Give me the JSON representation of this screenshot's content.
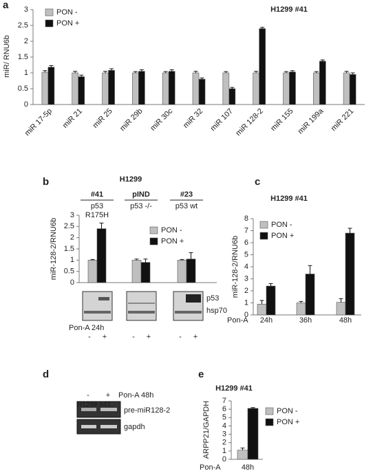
{
  "chart_data": [
    {
      "type": "bar",
      "panel": "a",
      "title": "H1299 #41",
      "y_label": "miR/ RNU6b",
      "categories": [
        "miR 17-5p",
        "miR 21",
        "miR 25",
        "miR 29b",
        "miR 30c",
        "miR 32",
        "miR 107",
        "miR 128-2",
        "miR 155",
        "miR 199a",
        "miR 221"
      ],
      "series": [
        {
          "name": "PON -",
          "color": "#bfbfbf",
          "values": [
            1.02,
            1.0,
            1.0,
            1.0,
            1.0,
            1.0,
            1.0,
            1.0,
            1.0,
            1.0,
            1.0
          ],
          "errors": [
            0.05,
            0.05,
            0.05,
            0.04,
            0.04,
            0.05,
            0.04,
            0.05,
            0.04,
            0.04,
            0.05
          ]
        },
        {
          "name": "PON +",
          "color": "#111111",
          "values": [
            1.18,
            0.88,
            1.08,
            1.05,
            1.05,
            0.8,
            0.5,
            2.4,
            1.03,
            1.37,
            0.95
          ],
          "errors": [
            0.05,
            0.05,
            0.05,
            0.05,
            0.05,
            0.04,
            0.04,
            0.04,
            0.04,
            0.04,
            0.05
          ]
        }
      ],
      "ylim": [
        0,
        3
      ],
      "yticks": [
        0,
        0.5,
        1,
        1.5,
        2,
        2.5,
        3
      ],
      "legend": "top-left"
    },
    {
      "type": "bar",
      "panel": "b",
      "title": "H1299",
      "y_label": "miR-128-2/RNU6b",
      "categories": [
        "#41",
        "pIND",
        "#23"
      ],
      "sublabels": [
        [
          "p53",
          "R175H"
        ],
        [
          "p53 -/-"
        ],
        [
          "p53 wt"
        ]
      ],
      "series": [
        {
          "name": "PON -",
          "color": "#bfbfbf",
          "values": [
            1.0,
            1.0,
            1.0
          ],
          "errors": [
            0.03,
            0.05,
            0.03
          ]
        },
        {
          "name": "PON +",
          "color": "#111111",
          "values": [
            2.4,
            0.9,
            1.05
          ],
          "errors": [
            0.25,
            0.15,
            0.28
          ]
        }
      ],
      "ylim": [
        0,
        3
      ],
      "yticks": [
        0,
        0.5,
        1,
        1.5,
        2,
        2.5,
        3
      ],
      "legend": "top-right",
      "blot": {
        "treatment": "Pon-A 24h",
        "lanes": [
          "-",
          "+",
          "-",
          "+",
          "-",
          "+"
        ],
        "labels": [
          "p53",
          "hsp70"
        ]
      }
    },
    {
      "type": "bar",
      "panel": "c",
      "title": "H1299 #41",
      "y_label": "miR-128-2/RNU6b",
      "x_label": "Pon-A",
      "categories": [
        "24h",
        "36h",
        "48h"
      ],
      "series": [
        {
          "name": "PON -",
          "color": "#bfbfbf",
          "values": [
            0.9,
            1.0,
            1.05
          ],
          "errors": [
            0.3,
            0.12,
            0.3
          ]
        },
        {
          "name": "PON +",
          "color": "#111111",
          "values": [
            2.4,
            3.4,
            6.8
          ],
          "errors": [
            0.2,
            0.7,
            0.4
          ]
        }
      ],
      "ylim": [
        0,
        8
      ],
      "yticks": [
        0,
        1,
        2,
        3,
        4,
        5,
        6,
        7,
        8
      ],
      "legend": "top-left"
    },
    {
      "type": "bar",
      "panel": "e",
      "title": "H1299 #41",
      "y_label": "ARPP21/GAPDH",
      "x_label": "Pon-A",
      "categories": [
        "48h"
      ],
      "series": [
        {
          "name": "PON -",
          "color": "#bfbfbf",
          "values": [
            1.1
          ],
          "errors": [
            0.25
          ]
        },
        {
          "name": "PON +",
          "color": "#111111",
          "values": [
            6.1
          ],
          "errors": [
            0.1
          ]
        }
      ],
      "ylim": [
        0,
        7
      ],
      "yticks": [
        0,
        1,
        2,
        3,
        4,
        5,
        6,
        7
      ],
      "legend": "top-right"
    }
  ],
  "gel": {
    "panel": "d",
    "title": "H1299 #41",
    "lanes": [
      "-",
      "+"
    ],
    "treatment": "Pon-A 48h",
    "labels": [
      "pre-miR128-2",
      "gapdh"
    ]
  }
}
